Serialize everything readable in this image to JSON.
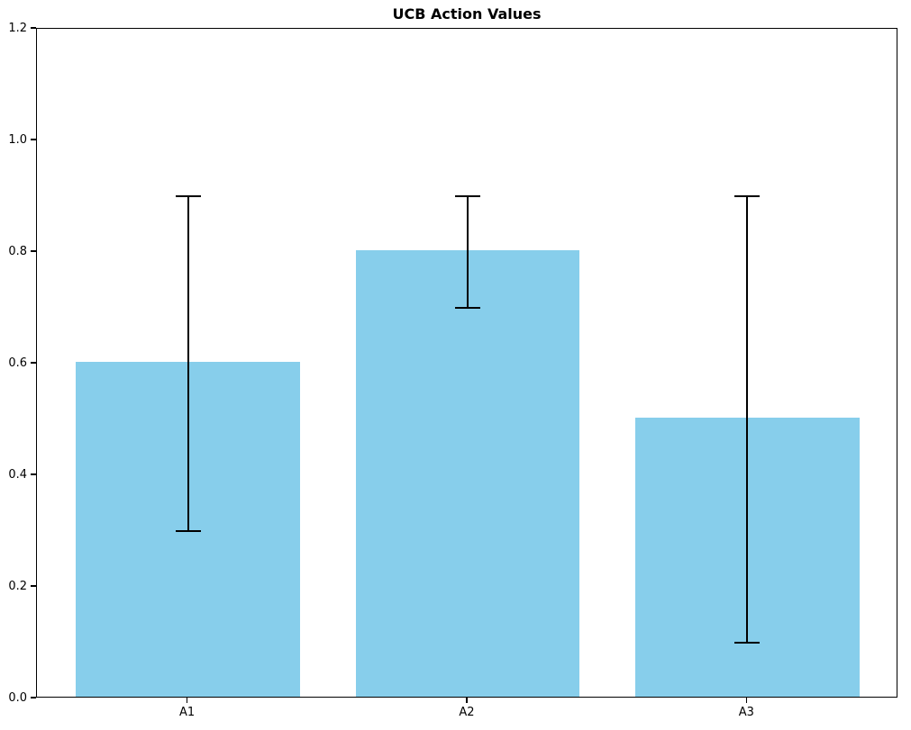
{
  "chart_data": {
    "type": "bar",
    "title": "UCB Action Values",
    "categories": [
      "A1",
      "A2",
      "A3"
    ],
    "values": [
      0.6,
      0.8,
      0.5
    ],
    "error": [
      0.3,
      0.1,
      0.4
    ],
    "error_low": [
      0.3,
      0.7,
      0.1
    ],
    "error_high": [
      0.9,
      0.9,
      0.9
    ],
    "bar_color": "#87CEEB",
    "error_color": "#000000",
    "xlabel": "",
    "ylabel": "",
    "ylim": [
      0.0,
      1.2
    ],
    "xlim": [
      -0.54,
      2.54
    ],
    "bar_width": 0.8,
    "yticks": [
      "0.0",
      "0.2",
      "0.4",
      "0.6",
      "0.8",
      "1.0",
      "1.2"
    ],
    "grid": false,
    "legend_position": "none"
  }
}
